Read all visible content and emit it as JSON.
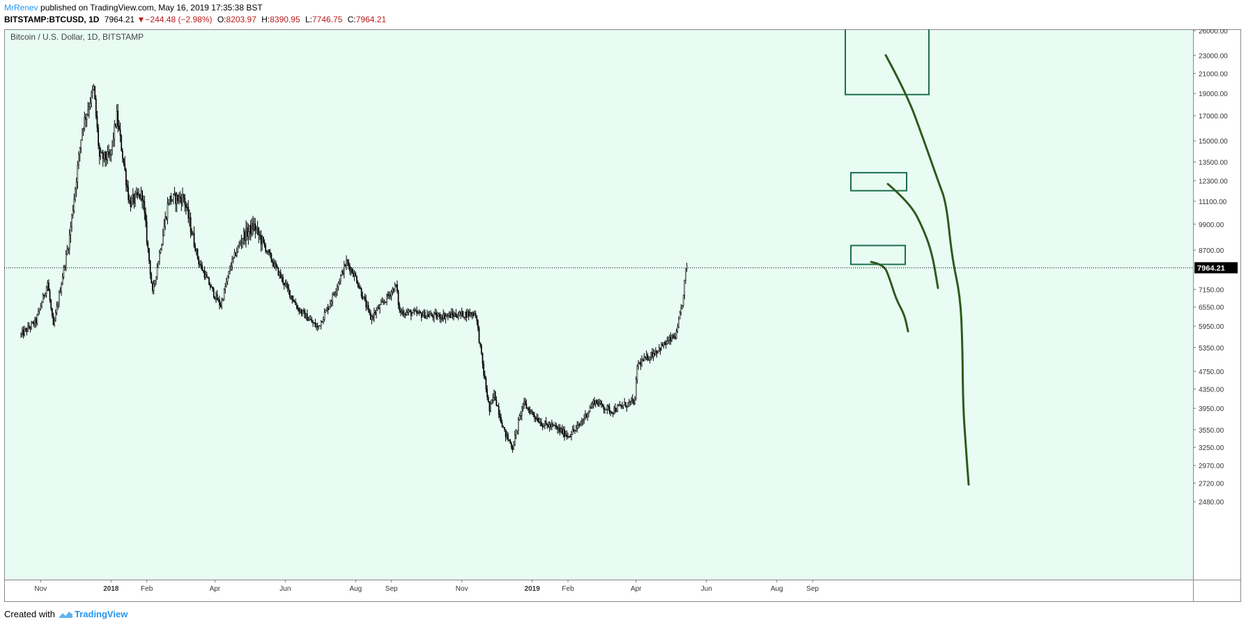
{
  "header": {
    "author": "MrRenev",
    "published_text": "published on TradingView.com, May 16, 2019 17:35:38 BST",
    "symbol": "BITSTAMP:BTCUSD, 1D",
    "last": "7964.21",
    "change": "−244.48 (−2.98%)",
    "open_label": "O:",
    "open": "8203.97",
    "high_label": "H:",
    "high": "8390.95",
    "low_label": "L:",
    "low": "7746.75",
    "close_label": "C:",
    "close": "7964.21"
  },
  "footer": {
    "created_with": "Created with",
    "brand": "TradingView"
  },
  "icons": {
    "down_arrow": "triangle-down-icon",
    "logo": "tradingview-logo-icon"
  },
  "colors": {
    "background": "#e8fcf3",
    "candles": "#000000",
    "drawings": "#2e5a1c",
    "boxes": "#1b6e50",
    "price_tag": "#000000"
  },
  "chart_data": {
    "type": "candlestick",
    "title": "Bitcoin / U.S. Dollar, 1D, BITSTAMP",
    "scale": "log",
    "last_price": 7964.21,
    "x_ticks": [
      "Nov",
      "2018",
      "Feb",
      "Apr",
      "Jun",
      "Aug",
      "Sep",
      "Nov",
      "2019",
      "Feb",
      "Apr",
      "Jun",
      "Aug",
      "Sep"
    ],
    "y_ticks": [
      "26000.00",
      "23000.00",
      "21000.00",
      "19000.00",
      "17000.00",
      "15000.00",
      "13500.00",
      "12300.00",
      "11100.00",
      "9900.00",
      "8700.00",
      "7150.00",
      "6550.00",
      "5950.00",
      "5350.00",
      "4750.00",
      "4350.00",
      "3950.00",
      "3550.00",
      "3250.00",
      "2970.00",
      "2720.00",
      "2480.00"
    ],
    "series": [
      {
        "keypoints": [
          [
            "2017-10-15",
            5700
          ],
          [
            "2017-10-28",
            6100
          ],
          [
            "2017-11-07",
            7400
          ],
          [
            "2017-11-12",
            5900
          ],
          [
            "2017-11-26",
            9300
          ],
          [
            "2017-12-07",
            16000
          ],
          [
            "2017-12-17",
            19500
          ],
          [
            "2017-12-22",
            13800
          ],
          [
            "2017-12-31",
            13800
          ],
          [
            "2018-01-06",
            17000
          ],
          [
            "2018-01-17",
            11000
          ],
          [
            "2018-01-28",
            11500
          ],
          [
            "2018-02-06",
            7000
          ],
          [
            "2018-02-20",
            11200
          ],
          [
            "2018-03-05",
            11300
          ],
          [
            "2018-03-18",
            8200
          ],
          [
            "2018-03-31",
            7000
          ],
          [
            "2018-04-06",
            6600
          ],
          [
            "2018-04-15",
            8100
          ],
          [
            "2018-04-25",
            9300
          ],
          [
            "2018-05-05",
            9800
          ],
          [
            "2018-05-20",
            8300
          ],
          [
            "2018-06-12",
            6500
          ],
          [
            "2018-06-29",
            5900
          ],
          [
            "2018-07-10",
            6700
          ],
          [
            "2018-07-24",
            8200
          ],
          [
            "2018-08-01",
            7600
          ],
          [
            "2018-08-14",
            6200
          ],
          [
            "2018-08-25",
            6700
          ],
          [
            "2018-09-05",
            7300
          ],
          [
            "2018-09-08",
            6400
          ],
          [
            "2018-10-11",
            6250
          ],
          [
            "2018-11-13",
            6350
          ],
          [
            "2018-11-20",
            4700
          ],
          [
            "2018-11-25",
            3900
          ],
          [
            "2018-11-29",
            4250
          ],
          [
            "2018-12-08",
            3500
          ],
          [
            "2018-12-15",
            3250
          ],
          [
            "2018-12-24",
            4050
          ],
          [
            "2019-01-10",
            3650
          ],
          [
            "2019-01-20",
            3600
          ],
          [
            "2019-02-01",
            3450
          ],
          [
            "2019-02-10",
            3600
          ],
          [
            "2019-02-24",
            4100
          ],
          [
            "2019-03-10",
            3900
          ],
          [
            "2019-03-31",
            4100
          ],
          [
            "2019-04-02",
            4900
          ],
          [
            "2019-04-20",
            5300
          ],
          [
            "2019-05-06",
            5700
          ],
          [
            "2019-05-12",
            6900
          ],
          [
            "2019-05-14",
            7900
          ],
          [
            "2019-05-16",
            7964.21
          ]
        ]
      }
    ],
    "drawings": [
      {
        "kind": "rectangle",
        "price_top": 26500,
        "price_bottom": 18900
      },
      {
        "kind": "rectangle",
        "price_top": 12800,
        "price_bottom": 11700
      },
      {
        "kind": "rectangle",
        "price_top": 8900,
        "price_bottom": 8100
      }
    ]
  }
}
